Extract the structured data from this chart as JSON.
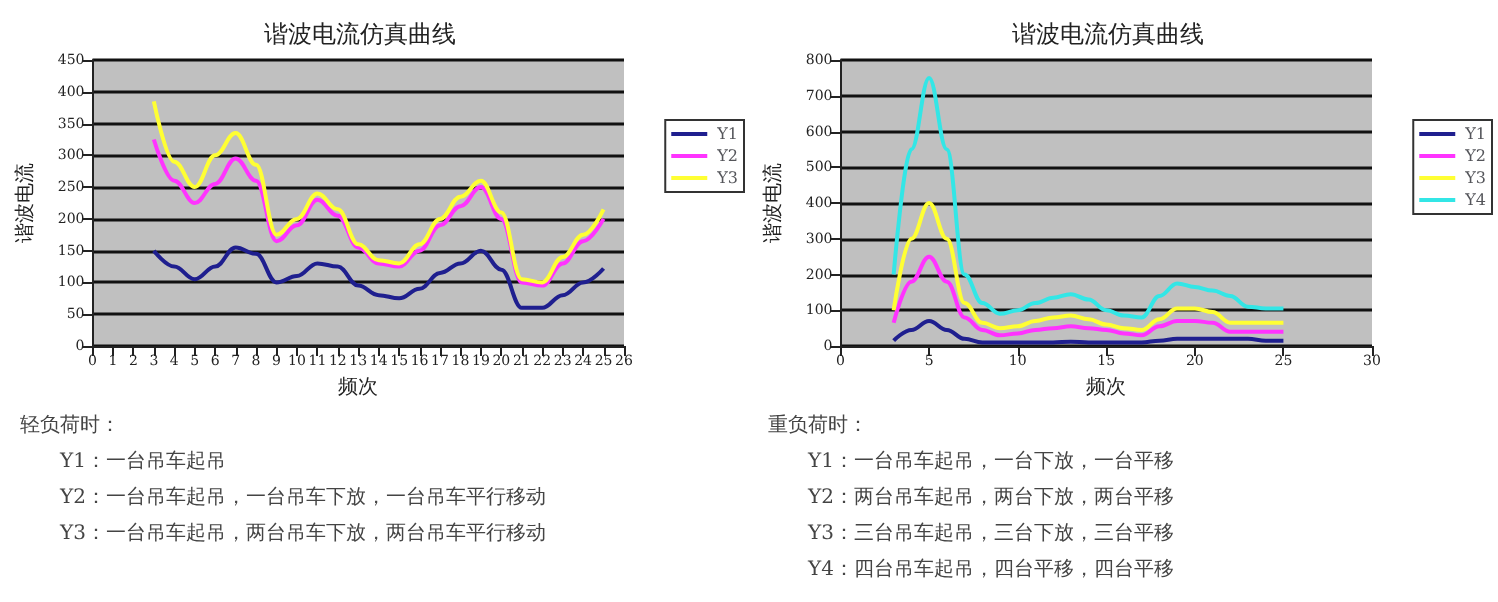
{
  "chart_data": [
    {
      "type": "line",
      "title": "谐波电流仿真曲线",
      "xlabel": "频次",
      "ylabel": "谐波电流",
      "x": [
        3,
        4,
        5,
        6,
        7,
        8,
        9,
        10,
        11,
        12,
        13,
        14,
        15,
        16,
        17,
        18,
        19,
        20,
        21,
        22,
        23,
        24,
        25
      ],
      "series": [
        {
          "name": "Y1",
          "color": "#1f1f8f",
          "values": [
            150,
            125,
            105,
            125,
            155,
            145,
            100,
            110,
            130,
            125,
            95,
            80,
            75,
            90,
            115,
            130,
            150,
            120,
            60,
            60,
            80,
            100,
            122
          ]
        },
        {
          "name": "Y2",
          "color": "#ff33ff",
          "values": [
            325,
            260,
            225,
            255,
            295,
            260,
            165,
            190,
            230,
            205,
            155,
            130,
            125,
            150,
            190,
            220,
            250,
            200,
            100,
            95,
            130,
            165,
            200
          ]
        },
        {
          "name": "Y3",
          "color": "#ffff33",
          "values": [
            385,
            290,
            250,
            300,
            335,
            285,
            175,
            200,
            240,
            215,
            160,
            135,
            130,
            160,
            200,
            235,
            260,
            210,
            105,
            100,
            140,
            175,
            215
          ]
        }
      ],
      "xlim": [
        0,
        26
      ],
      "xticks": [
        0,
        1,
        2,
        3,
        4,
        5,
        6,
        7,
        8,
        9,
        10,
        11,
        12,
        13,
        14,
        15,
        16,
        17,
        18,
        19,
        20,
        21,
        22,
        23,
        24,
        25,
        26
      ],
      "ylim": [
        0,
        450
      ],
      "yticks": [
        0,
        50,
        100,
        150,
        200,
        250,
        300,
        350,
        400,
        450
      ],
      "grid": "y",
      "legend": "right",
      "marker": "none",
      "annotations": [
        "轻负荷时：",
        "Y1：一台吊车起吊",
        "Y2：一台吊车起吊，一台吊车下放，一台吊车平行移动",
        "Y3：一台吊车起吊，两台吊车下放，两台吊车平行移动"
      ]
    },
    {
      "type": "line",
      "title": "谐波电流仿真曲线",
      "xlabel": "频次",
      "ylabel": "谐波电流",
      "x": [
        3,
        4,
        5,
        6,
        7,
        8,
        9,
        10,
        11,
        12,
        13,
        14,
        15,
        16,
        17,
        18,
        19,
        20,
        21,
        22,
        23,
        24,
        25
      ],
      "series": [
        {
          "name": "Y1",
          "color": "#1f1f8f",
          "values": [
            15,
            45,
            70,
            45,
            20,
            10,
            10,
            10,
            10,
            10,
            12,
            10,
            10,
            10,
            10,
            15,
            20,
            20,
            20,
            20,
            20,
            15,
            15
          ]
        },
        {
          "name": "Y2",
          "color": "#ff33ff",
          "values": [
            65,
            180,
            250,
            180,
            80,
            45,
            30,
            35,
            45,
            50,
            55,
            50,
            45,
            35,
            30,
            55,
            70,
            70,
            65,
            40,
            40,
            40,
            40
          ]
        },
        {
          "name": "Y3",
          "color": "#ffff33",
          "values": [
            100,
            300,
            400,
            300,
            120,
            65,
            50,
            55,
            70,
            80,
            85,
            75,
            60,
            50,
            45,
            75,
            105,
            105,
            95,
            65,
            65,
            65,
            65
          ]
        },
        {
          "name": "Y4",
          "color": "#33e6e6",
          "values": [
            200,
            550,
            750,
            550,
            200,
            120,
            90,
            100,
            120,
            135,
            145,
            130,
            100,
            85,
            80,
            140,
            175,
            165,
            155,
            140,
            110,
            105,
            105
          ]
        }
      ],
      "xlim": [
        0,
        30
      ],
      "xticks": [
        0,
        5,
        10,
        15,
        20,
        25,
        30
      ],
      "ylim": [
        0,
        800
      ],
      "yticks": [
        0,
        100,
        200,
        300,
        400,
        500,
        600,
        700,
        800
      ],
      "grid": "y",
      "legend": "right",
      "marker": "none",
      "annotations": [
        "重负荷时：",
        "Y1：一台吊车起吊，一台下放，一台平移",
        "Y2：两台吊车起吊，两台下放，两台平移",
        "Y3：三台吊车起吊，三台下放，三台平移",
        "Y4：四台吊车起吊，四台平移，四台平移"
      ]
    }
  ]
}
